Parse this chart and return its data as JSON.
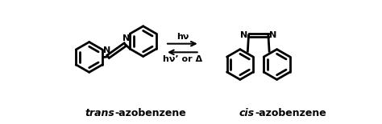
{
  "bg_color": "#ffffff",
  "line_color": "#000000",
  "line_width": 2.0,
  "figsize": [
    4.74,
    1.55
  ],
  "dpi": 100,
  "trans_label": "trans",
  "cis_label": "cis",
  "suffix_label": "-azobenzene",
  "arrow_top": "hν",
  "arrow_bottom": "hν’ or Δ",
  "font_size_label": 9,
  "font_size_arrow": 8
}
